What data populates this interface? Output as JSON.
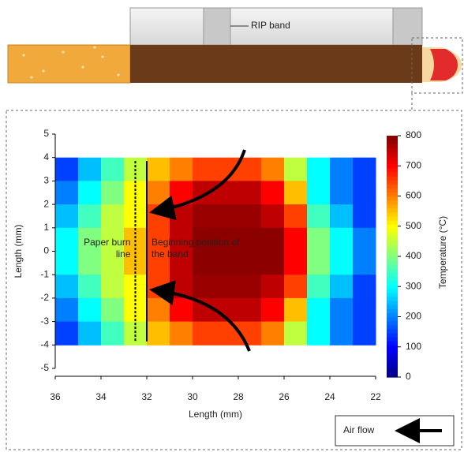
{
  "rip_band_label": "RIP band",
  "air_flow_label": "Air flow",
  "chart_data": {
    "type": "heatmap",
    "xlabel": "Length (mm)",
    "ylabel": "Length (mm)",
    "colorbar_label": "Temperature (°C)",
    "xlim": [
      36,
      22
    ],
    "ylim": [
      -5,
      5
    ],
    "xticks": [
      36,
      34,
      32,
      30,
      28,
      26,
      24,
      22
    ],
    "yticks": [
      5,
      4,
      3,
      2,
      1,
      0,
      -1,
      -2,
      -3,
      -4,
      -5
    ],
    "clim": [
      0,
      800
    ],
    "cticks": [
      0,
      100,
      200,
      300,
      400,
      500,
      600,
      700,
      800
    ],
    "colormap": "jet",
    "x": [
      35.5,
      34.5,
      33.5,
      32.5,
      31.5,
      30.5,
      29.5,
      28.5,
      27.5,
      26.5,
      25.5,
      24.5,
      23.5,
      22.5
    ],
    "y": [
      3.5,
      2.5,
      1.5,
      0.5,
      -0.5,
      -1.5,
      -2.5,
      -3.5
    ],
    "z": [
      [
        150,
        250,
        350,
        450,
        550,
        600,
        650,
        650,
        650,
        600,
        450,
        300,
        200,
        150
      ],
      [
        200,
        300,
        400,
        500,
        600,
        700,
        750,
        750,
        750,
        700,
        550,
        300,
        200,
        150
      ],
      [
        250,
        350,
        450,
        500,
        650,
        750,
        780,
        780,
        780,
        750,
        650,
        350,
        250,
        150
      ],
      [
        300,
        400,
        450,
        550,
        650,
        750,
        790,
        790,
        790,
        790,
        700,
        400,
        300,
        200
      ],
      [
        300,
        400,
        450,
        550,
        650,
        750,
        790,
        790,
        790,
        790,
        700,
        400,
        300,
        200
      ],
      [
        250,
        350,
        450,
        500,
        650,
        750,
        780,
        780,
        780,
        750,
        650,
        350,
        250,
        150
      ],
      [
        200,
        300,
        400,
        500,
        600,
        700,
        750,
        750,
        750,
        700,
        550,
        300,
        200,
        150
      ],
      [
        150,
        250,
        350,
        450,
        550,
        600,
        650,
        650,
        650,
        600,
        450,
        300,
        200,
        150
      ]
    ],
    "lines": [
      {
        "label": "Paper burn line",
        "x": 32.5,
        "style": "dashed"
      },
      {
        "label": "Beginning position of the band",
        "x": 32,
        "style": "solid"
      }
    ]
  }
}
